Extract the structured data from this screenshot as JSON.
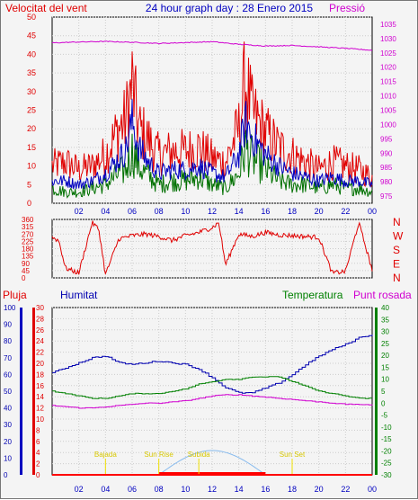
{
  "header": {
    "left_title": "Velocitat del vent",
    "center_title": "24 hour graph day : 28 Enero 2015",
    "right_title": "Pressió"
  },
  "colors": {
    "wind_gust": "#e00000",
    "wind_avg": "#0000c0",
    "wind_min": "#007000",
    "pressure": "#d000d0",
    "direction": "#e00000",
    "humidity": "#0000b0",
    "temperature": "#008000",
    "dewpoint": "#d000d0",
    "rain": "#ff0000",
    "solar": "#88bbee",
    "event_marker": "#f0e000"
  },
  "chart_data": [
    {
      "id": "wind-pressure",
      "type": "line",
      "x_ticks": [
        "02",
        "04",
        "06",
        "08",
        "10",
        "12",
        "14",
        "16",
        "18",
        "20",
        "22",
        "00"
      ],
      "xlim": [
        0,
        24
      ],
      "left_axis": {
        "title": "Velocitat del vent",
        "ylim": [
          0,
          50
        ],
        "ticks": [
          0,
          5,
          10,
          15,
          20,
          25,
          30,
          35,
          40,
          45,
          50
        ]
      },
      "right_axis": {
        "title": "Pressió",
        "ylim": [
          972.5,
          1037.5
        ],
        "ticks": [
          975,
          980,
          985,
          990,
          995,
          1000,
          1005,
          1010,
          1015,
          1020,
          1025,
          1030,
          1035
        ]
      },
      "grid": true,
      "series": [
        {
          "role": "gust",
          "axis": "left",
          "x": [
            0,
            1,
            2,
            3,
            4,
            5,
            5.5,
            6,
            6.5,
            7,
            8,
            9,
            10,
            11,
            12,
            13,
            14,
            14.5,
            15,
            16,
            17,
            18,
            19,
            20,
            21,
            22,
            23,
            24
          ],
          "values": [
            10,
            11,
            9,
            10,
            13,
            20,
            22,
            32,
            20,
            18,
            13,
            14,
            14,
            15,
            12,
            11,
            20,
            33,
            24,
            19,
            15,
            13,
            11,
            9,
            11,
            10,
            9,
            7
          ]
        },
        {
          "role": "average",
          "axis": "left",
          "x": [
            0,
            1,
            2,
            3,
            4,
            5,
            5.5,
            6,
            6.5,
            7,
            8,
            9,
            10,
            11,
            12,
            13,
            14,
            14.5,
            15,
            16,
            17,
            18,
            19,
            20,
            21,
            22,
            23,
            24
          ],
          "values": [
            6,
            6,
            5,
            6,
            8,
            12,
            14,
            22,
            15,
            12,
            8,
            9,
            9,
            10,
            8,
            7,
            13,
            22,
            18,
            13,
            10,
            8,
            7,
            6,
            7,
            6,
            6,
            5
          ]
        },
        {
          "role": "minimum",
          "axis": "left",
          "x": [
            0,
            1,
            2,
            3,
            4,
            5,
            5.5,
            6,
            6.5,
            7,
            8,
            9,
            10,
            11,
            12,
            13,
            14,
            14.5,
            15,
            16,
            17,
            18,
            19,
            20,
            21,
            22,
            23,
            24
          ],
          "values": [
            4,
            3,
            3,
            4,
            5,
            8,
            9,
            14,
            10,
            8,
            5,
            6,
            6,
            7,
            5,
            4,
            8,
            15,
            12,
            9,
            6,
            5,
            5,
            4,
            5,
            4,
            4,
            3
          ]
        },
        {
          "role": "pressure",
          "axis": "right",
          "x": [
            0,
            2,
            4,
            6,
            8,
            10,
            12,
            14,
            16,
            18,
            20,
            22,
            24
          ],
          "values": [
            1028.5,
            1028.8,
            1029,
            1028.7,
            1028.3,
            1028.6,
            1028.9,
            1028,
            1027.4,
            1027.6,
            1027.1,
            1026.6,
            1025.9
          ]
        }
      ]
    },
    {
      "id": "wind-direction",
      "type": "line",
      "ylim": [
        0,
        360
      ],
      "y_ticks": [
        0,
        45,
        90,
        135,
        180,
        225,
        270,
        315,
        360
      ],
      "compass_labels": [
        "N",
        "W",
        "S",
        "E",
        "N"
      ],
      "grid": true,
      "series": [
        {
          "role": "direction",
          "x": [
            0,
            0.5,
            1,
            2,
            3,
            3.5,
            4,
            5,
            6,
            7,
            8,
            9,
            10,
            11,
            12,
            12.5,
            13,
            14,
            15,
            16,
            17,
            18,
            19,
            20,
            21,
            22,
            23,
            24
          ],
          "values": [
            250,
            230,
            60,
            30,
            340,
            300,
            20,
            240,
            260,
            270,
            255,
            230,
            260,
            280,
            310,
            340,
            80,
            270,
            255,
            280,
            265,
            260,
            255,
            250,
            30,
            40,
            340,
            50
          ]
        }
      ]
    },
    {
      "id": "temp-humidity-rain",
      "type": "line",
      "header": {
        "rain_title": "Pluja",
        "humidity_title": "Humitat",
        "temperature_title": "Temperatura",
        "dewpoint_title": "Punt rosada"
      },
      "rain_axis": {
        "ylim": [
          0,
          30
        ],
        "ticks": [
          0,
          2,
          4,
          6,
          8,
          10,
          12,
          14,
          16,
          18,
          20,
          22,
          24,
          26,
          28,
          30
        ]
      },
      "humidity_axis": {
        "ylim": [
          0,
          100
        ],
        "ticks": [
          0,
          10,
          20,
          30,
          40,
          50,
          60,
          70,
          80,
          90,
          100
        ]
      },
      "temperature_axis": {
        "ylim": [
          -30,
          40
        ],
        "ticks": [
          40,
          35,
          30,
          25,
          20,
          15,
          10,
          5,
          0,
          -5,
          -10,
          -15,
          -20,
          -25,
          -30
        ]
      },
      "grid": true,
      "series": [
        {
          "role": "humidity",
          "x": [
            0,
            1,
            2,
            3,
            4,
            5,
            6,
            7,
            8,
            9,
            10,
            11,
            12,
            13,
            14,
            15,
            16,
            17,
            18,
            19,
            20,
            21,
            22,
            23,
            24
          ],
          "values": [
            61,
            64,
            67,
            70,
            71,
            67,
            66,
            67,
            68,
            67,
            66,
            63,
            58,
            52,
            49,
            49,
            52,
            55,
            60,
            66,
            71,
            75,
            78,
            82,
            84
          ]
        },
        {
          "role": "temperature",
          "x": [
            0,
            1,
            2,
            3,
            4,
            5,
            6,
            7,
            8,
            9,
            10,
            11,
            12,
            13,
            14,
            15,
            16,
            17,
            18,
            19,
            20,
            21,
            22,
            23,
            24
          ],
          "values": [
            5,
            4,
            3,
            2,
            2,
            3,
            4,
            4,
            4,
            5,
            6,
            8,
            9,
            10,
            10,
            11,
            11,
            11,
            9,
            7,
            5,
            4,
            3,
            2,
            2
          ]
        },
        {
          "role": "dewpoint",
          "x": [
            0,
            1,
            2,
            3,
            4,
            5,
            6,
            7,
            8,
            9,
            10,
            11,
            12,
            13,
            14,
            15,
            16,
            17,
            18,
            19,
            20,
            21,
            22,
            23,
            24
          ],
          "values": [
            -1,
            -1.5,
            -2,
            -2,
            -1.5,
            -1,
            -0.5,
            0,
            0,
            0.5,
            1,
            2,
            3,
            3.5,
            3.5,
            3,
            2.5,
            2,
            1.5,
            1,
            0.5,
            0,
            -0.5,
            -0.5,
            -1
          ]
        },
        {
          "role": "rain",
          "x": [
            0,
            24
          ],
          "values": [
            0,
            0
          ]
        }
      ],
      "events": [
        {
          "label": "Bajada",
          "hour": 4
        },
        {
          "label": "Sun Rise",
          "hour": 8
        },
        {
          "label": "Subida",
          "hour": 11
        },
        {
          "label": "Sun Set",
          "hour": 18
        }
      ],
      "daylight": {
        "start": 8,
        "end": 16
      }
    }
  ]
}
